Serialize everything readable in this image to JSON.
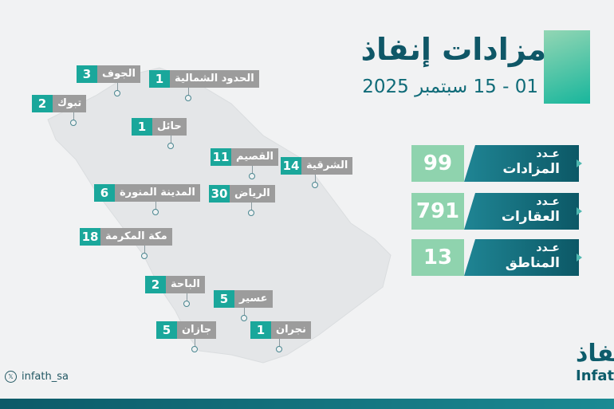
{
  "title": "مزادات إنفاذ",
  "date_range": "01 - 15 سبتمبر 2025",
  "stats": [
    {
      "line1": "عـدد",
      "line2": "المزادات",
      "value": "99"
    },
    {
      "line1": "عـدد",
      "line2": "العقارات",
      "value": "791"
    },
    {
      "line1": "عـدد",
      "line2": "المناطق",
      "value": "13"
    }
  ],
  "regions": [
    {
      "name": "الجوف",
      "count": "3"
    },
    {
      "name": "الحدود الشمالية",
      "count": "1"
    },
    {
      "name": "تبوك",
      "count": "2"
    },
    {
      "name": "حائل",
      "count": "1"
    },
    {
      "name": "القصيم",
      "count": "11"
    },
    {
      "name": "الشرقية",
      "count": "14"
    },
    {
      "name": "المدينة المنورة",
      "count": "6"
    },
    {
      "name": "الرياض",
      "count": "30"
    },
    {
      "name": "مكة المكرمة",
      "count": "18"
    },
    {
      "name": "الباحة",
      "count": "2"
    },
    {
      "name": "عسير",
      "count": "5"
    },
    {
      "name": "جازان",
      "count": "5"
    },
    {
      "name": "نجران",
      "count": "1"
    }
  ],
  "social": {
    "handle": "infath_sa"
  },
  "logo": {
    "arabic": "نفاذ",
    "latin": "Infat"
  },
  "colors": {
    "primary": "#0f5767",
    "accent": "#1aa79b",
    "light_accent": "#8fd3ae",
    "tag_gray": "#9c9c9c"
  }
}
